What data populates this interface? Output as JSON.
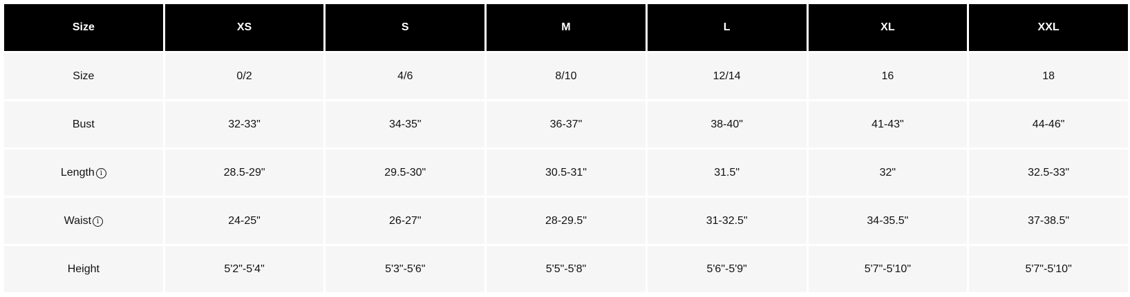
{
  "table": {
    "headers": [
      "Size",
      "XS",
      "S",
      "M",
      "L",
      "XL",
      "XXL"
    ],
    "rows": [
      {
        "label": "Size",
        "info": false,
        "values": [
          "0/2",
          "4/6",
          "8/10",
          "12/14",
          "16",
          "18"
        ]
      },
      {
        "label": "Bust",
        "info": false,
        "values": [
          "32-33\"",
          "34-35\"",
          "36-37\"",
          "38-40\"",
          "41-43\"",
          "44-46\""
        ]
      },
      {
        "label": "Length",
        "info": true,
        "values": [
          "28.5-29\"",
          "29.5-30\"",
          "30.5-31\"",
          "31.5\"",
          "32\"",
          "32.5-33\""
        ]
      },
      {
        "label": "Waist",
        "info": true,
        "values": [
          "24-25\"",
          "26-27\"",
          "28-29.5\"",
          "31-32.5\"",
          "34-35.5\"",
          "37-38.5\""
        ]
      },
      {
        "label": "Height",
        "info": false,
        "values": [
          "5'2\"-5'4\"",
          "5'3\"-5'6\"",
          "5'5\"-5'8\"",
          "5'6\"-5'9\"",
          "5'7\"-5'10\"",
          "5'7\"-5'10\""
        ]
      }
    ],
    "info_icon": "info-circle-icon",
    "colors": {
      "header_bg": "#000000",
      "header_text": "#ffffff",
      "cell_bg": "#f6f6f6"
    }
  }
}
